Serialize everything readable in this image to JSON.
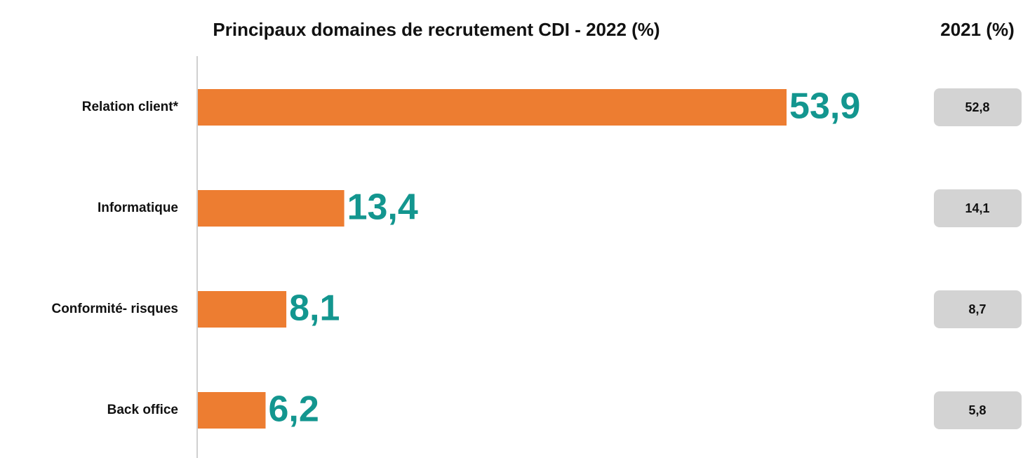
{
  "chart_data": {
    "type": "bar",
    "title": "Principaux domaines de recrutement CDI  - 2022 (%)",
    "categories": [
      "Relation client*",
      "Informatique",
      "Conformité- risques",
      "Back office"
    ],
    "values": [
      53.9,
      13.4,
      8.1,
      6.2
    ],
    "value_labels": [
      "53,9",
      "13,4",
      "8,1",
      "6,2"
    ],
    "color": "#ed7d31",
    "xlim": [
      0,
      60
    ],
    "comparison": {
      "title": "2021 (%)",
      "values": [
        52.8,
        14.1,
        8.7,
        5.8
      ],
      "value_labels": [
        "52,8",
        "14,1",
        "8,7",
        "5,8"
      ],
      "color": "#d3d3d3"
    }
  }
}
